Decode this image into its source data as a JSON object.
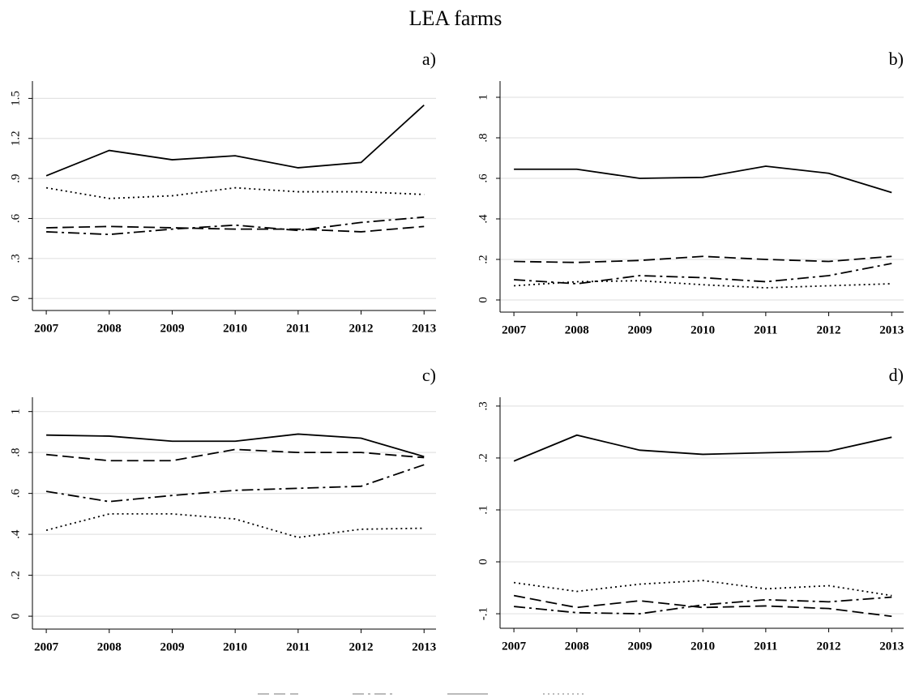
{
  "title": "LEA farms",
  "chart_data": [
    {
      "type": "line",
      "title": "a)",
      "x": [
        2007,
        2008,
        2009,
        2010,
        2011,
        2012,
        2013
      ],
      "xlim": [
        2006.78,
        2013.19
      ],
      "xticks": [
        2007,
        2008,
        2009,
        2010,
        2011,
        2012,
        2013
      ],
      "ylim": [
        -0.09,
        1.63
      ],
      "yticks": [
        0,
        {
          "value": 0.3,
          "label": ".3"
        },
        {
          "value": 0.6,
          "label": ".6"
        },
        {
          "value": 0.9,
          "label": ".9"
        },
        1.2,
        1.5
      ],
      "grid": true,
      "series": [
        {
          "color": "#000000",
          "linestyle": "solid",
          "values": [
            0.92,
            1.11,
            1.04,
            1.07,
            0.98,
            1.02,
            1.45
          ]
        },
        {
          "color": "#000000",
          "linestyle": "dotted",
          "values": [
            0.83,
            0.75,
            0.77,
            0.83,
            0.8,
            0.8,
            0.78
          ]
        },
        {
          "color": "#000000",
          "linestyle": "dashed",
          "values": [
            0.53,
            0.54,
            0.53,
            0.52,
            0.52,
            0.5,
            0.54
          ]
        },
        {
          "color": "#000000",
          "linestyle": "dashdot",
          "values": [
            0.5,
            0.48,
            0.52,
            0.55,
            0.51,
            0.57,
            0.61
          ]
        }
      ]
    },
    {
      "type": "line",
      "title": "b)",
      "x": [
        2007,
        2008,
        2009,
        2010,
        2011,
        2012,
        2013
      ],
      "xlim": [
        2006.78,
        2013.19
      ],
      "xticks": [
        2007,
        2008,
        2009,
        2010,
        2011,
        2012,
        2013
      ],
      "ylim": [
        -0.06,
        1.08
      ],
      "yticks": [
        0,
        {
          "value": 0.2,
          "label": ".2"
        },
        {
          "value": 0.4,
          "label": ".4"
        },
        {
          "value": 0.6,
          "label": ".6"
        },
        {
          "value": 0.8,
          "label": ".8"
        },
        1
      ],
      "grid": true,
      "series": [
        {
          "color": "#000000",
          "linestyle": "solid",
          "values": [
            0.645,
            0.645,
            0.6,
            0.605,
            0.66,
            0.625,
            0.53
          ]
        },
        {
          "color": "#000000",
          "linestyle": "dashed",
          "values": [
            0.19,
            0.185,
            0.195,
            0.215,
            0.2,
            0.19,
            0.215
          ]
        },
        {
          "color": "#000000",
          "linestyle": "dashdot",
          "values": [
            0.1,
            0.08,
            0.12,
            0.11,
            0.09,
            0.12,
            0.18
          ]
        },
        {
          "color": "#000000",
          "linestyle": "dotted",
          "values": [
            0.07,
            0.09,
            0.095,
            0.075,
            0.06,
            0.07,
            0.08
          ]
        }
      ]
    },
    {
      "type": "line",
      "title": "c)",
      "x": [
        2007,
        2008,
        2009,
        2010,
        2011,
        2012,
        2013
      ],
      "xlim": [
        2006.78,
        2013.19
      ],
      "xticks": [
        2007,
        2008,
        2009,
        2010,
        2011,
        2012,
        2013
      ],
      "ylim": [
        -0.063,
        1.07
      ],
      "yticks": [
        0,
        {
          "value": 0.2,
          "label": ".2"
        },
        {
          "value": 0.4,
          "label": ".4"
        },
        {
          "value": 0.6,
          "label": ".6"
        },
        {
          "value": 0.8,
          "label": ".8"
        },
        1
      ],
      "grid": true,
      "series": [
        {
          "color": "#000000",
          "linestyle": "solid",
          "values": [
            0.885,
            0.88,
            0.855,
            0.855,
            0.89,
            0.87,
            0.78
          ]
        },
        {
          "color": "#000000",
          "linestyle": "dashed",
          "values": [
            0.79,
            0.76,
            0.76,
            0.815,
            0.8,
            0.8,
            0.775
          ]
        },
        {
          "color": "#000000",
          "linestyle": "dashdot",
          "values": [
            0.61,
            0.56,
            0.59,
            0.615,
            0.625,
            0.635,
            0.74
          ]
        },
        {
          "color": "#000000",
          "linestyle": "dotted",
          "values": [
            0.42,
            0.5,
            0.5,
            0.475,
            0.385,
            0.425,
            0.43
          ]
        }
      ]
    },
    {
      "type": "line",
      "title": "d)",
      "x": [
        2007,
        2008,
        2009,
        2010,
        2011,
        2012,
        2013
      ],
      "xlim": [
        2006.78,
        2013.19
      ],
      "xticks": [
        2007,
        2008,
        2009,
        2010,
        2011,
        2012,
        2013
      ],
      "ylim": [
        -0.128,
        0.317
      ],
      "yticks": [
        {
          "value": -0.1,
          "label": "-.1"
        },
        0,
        {
          "value": 0.1,
          "label": ".1"
        },
        {
          "value": 0.2,
          "label": ".2"
        },
        {
          "value": 0.3,
          "label": ".3"
        }
      ],
      "grid": true,
      "series": [
        {
          "color": "#000000",
          "linestyle": "solid",
          "values": [
            0.194,
            0.244,
            0.215,
            0.207,
            0.21,
            0.213,
            0.24
          ]
        },
        {
          "color": "#000000",
          "linestyle": "dotted",
          "values": [
            -0.04,
            -0.057,
            -0.043,
            -0.036,
            -0.052,
            -0.046,
            -0.065
          ]
        },
        {
          "color": "#000000",
          "linestyle": "dashed",
          "values": [
            -0.065,
            -0.088,
            -0.075,
            -0.088,
            -0.085,
            -0.09,
            -0.105
          ]
        },
        {
          "color": "#000000",
          "linestyle": "dashdot",
          "values": [
            -0.086,
            -0.098,
            -0.1,
            -0.083,
            -0.073,
            -0.077,
            -0.068
          ]
        }
      ]
    }
  ]
}
